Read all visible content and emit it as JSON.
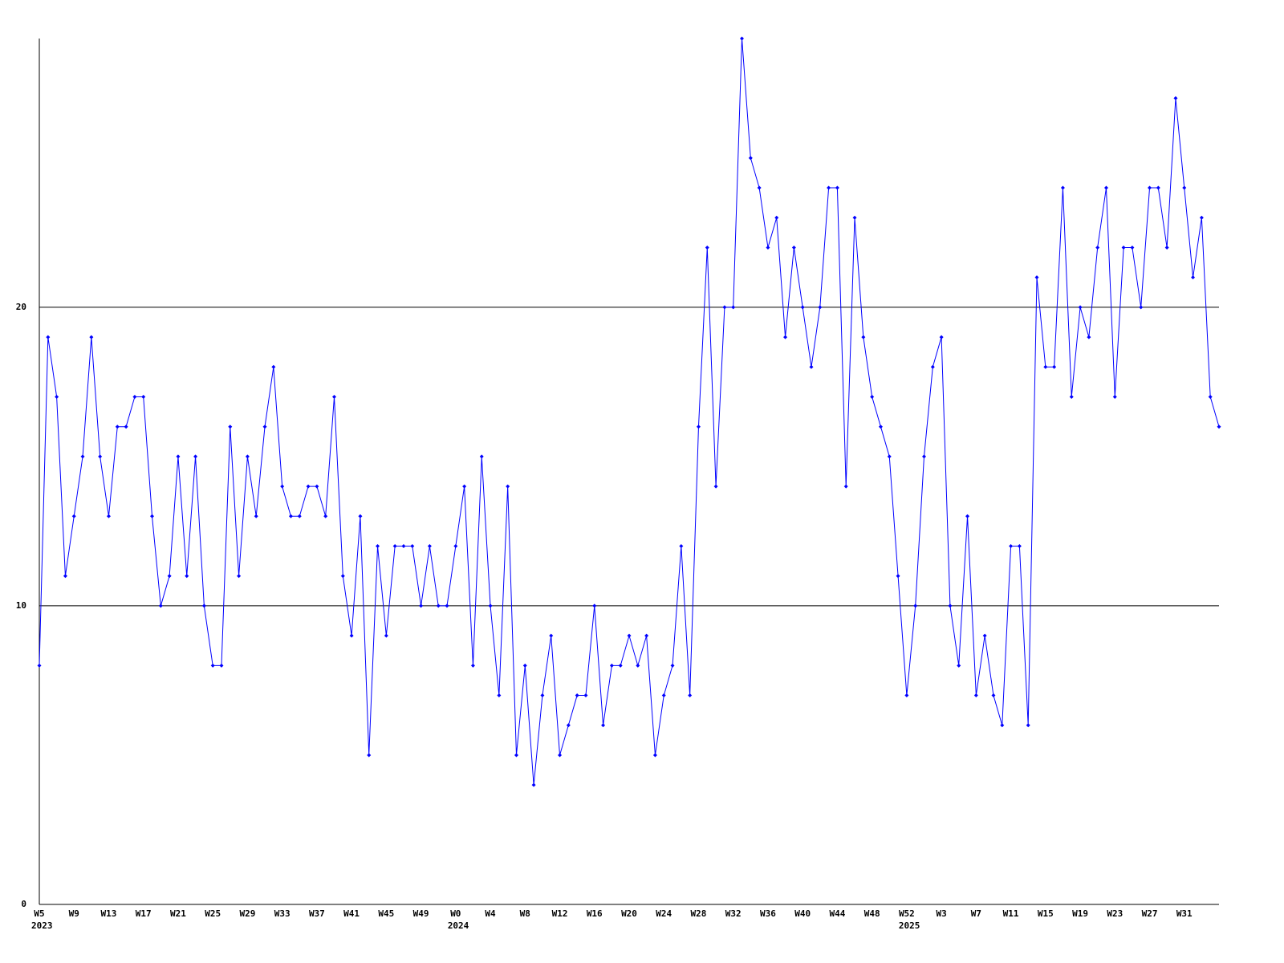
{
  "chart_data": {
    "type": "line",
    "categories": [
      "W5",
      null,
      null,
      null,
      "W9",
      null,
      null,
      null,
      "W13",
      null,
      null,
      null,
      "W17",
      null,
      null,
      null,
      "W21",
      null,
      null,
      null,
      "W25",
      null,
      null,
      null,
      "W29",
      null,
      null,
      null,
      "W33",
      null,
      null,
      null,
      "W37",
      null,
      null,
      null,
      "W41",
      null,
      null,
      null,
      "W45",
      null,
      null,
      null,
      "W49",
      null,
      null,
      null,
      "W0",
      null,
      null,
      null,
      "W4",
      null,
      null,
      null,
      "W8",
      null,
      null,
      null,
      "W12",
      null,
      null,
      null,
      "W16",
      null,
      null,
      null,
      "W20",
      null,
      null,
      null,
      "W24",
      null,
      null,
      null,
      "W28",
      null,
      null,
      null,
      "W32",
      null,
      null,
      null,
      "W36",
      null,
      null,
      null,
      "W40",
      null,
      null,
      null,
      "W44",
      null,
      null,
      null,
      "W48",
      null,
      null,
      null,
      "W52",
      null,
      null,
      null,
      "W3",
      null,
      null,
      null,
      "W7",
      null,
      null,
      null,
      "W11",
      null,
      null,
      null,
      "W15",
      null,
      null,
      null,
      "W19",
      null,
      null,
      null,
      "W23",
      null,
      null,
      null,
      "W27",
      null,
      null,
      null,
      "W31",
      null,
      null,
      null,
      null
    ],
    "x_group_labels": [
      {
        "index": 0,
        "label": "2023"
      },
      {
        "index": 48,
        "label": "2024"
      },
      {
        "index": 100,
        "label": "2025"
      }
    ],
    "series": [
      {
        "color": "#0000ff",
        "values": [
          8,
          19,
          17,
          11,
          13,
          15,
          19,
          15,
          13,
          16,
          16,
          17,
          17,
          13,
          10,
          11,
          15,
          11,
          15,
          10,
          8,
          8,
          16,
          11,
          15,
          13,
          16,
          18,
          14,
          13,
          13,
          14,
          14,
          13,
          17,
          11,
          9,
          13,
          5,
          12,
          9,
          12,
          12,
          12,
          10,
          12,
          10,
          10,
          12,
          14,
          8,
          15,
          10,
          7,
          14,
          5,
          8,
          4,
          7,
          9,
          5,
          6,
          7,
          7,
          10,
          6,
          8,
          8,
          9,
          8,
          9,
          5,
          7,
          8,
          12,
          7,
          16,
          22,
          14,
          20,
          20,
          29,
          25,
          24,
          22,
          23,
          19,
          22,
          20,
          18,
          20,
          24,
          24,
          14,
          23,
          19,
          17,
          16,
          15,
          11,
          7,
          10,
          15,
          18,
          19,
          10,
          8,
          13,
          7,
          9,
          7,
          6,
          12,
          12,
          6,
          21,
          18,
          18,
          24,
          17,
          20,
          19,
          22,
          24,
          17,
          22,
          22,
          20,
          24,
          24,
          22,
          27,
          24,
          21,
          23,
          17,
          16
        ]
      }
    ],
    "ylim": [
      0,
      29
    ],
    "yticks": [
      0,
      10,
      20
    ],
    "grid": true
  }
}
